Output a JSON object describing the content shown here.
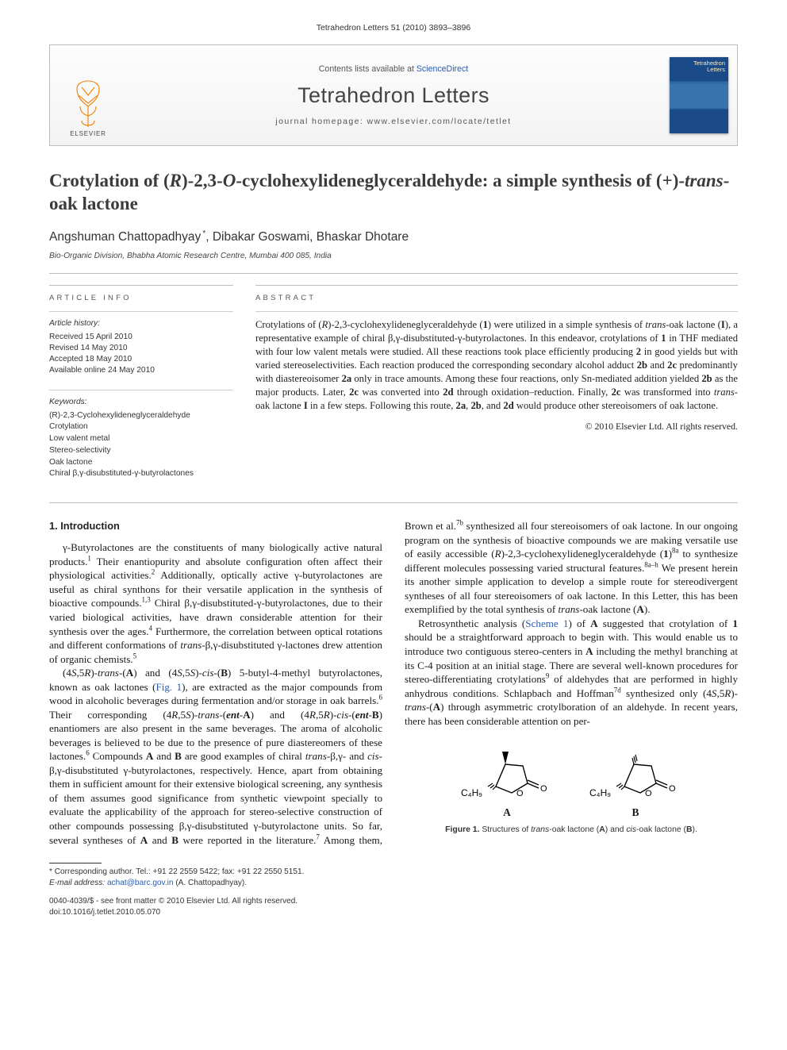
{
  "colors": {
    "link": "#2a5db0",
    "text": "#1a1a1a",
    "muted": "#555555",
    "rule": "#bdbdbd",
    "cover_bg_dark": "#1a4a87",
    "cover_bg_light": "#2d6aa8",
    "cover_text": "#f4e8c8",
    "elsevier_orange": "#ef8200"
  },
  "header": {
    "citation": "Tetrahedron Letters 51 (2010) 3893–3896"
  },
  "banner": {
    "contents_prefix": "Contents lists available at ",
    "contents_link": "ScienceDirect",
    "journal_name": "Tetrahedron Letters",
    "homepage_prefix": "journal homepage: ",
    "homepage_url": "www.elsevier.com/locate/tetlet",
    "publisher": "ELSEVIER",
    "cover_title_1": "Tetrahedron",
    "cover_title_2": "Letters"
  },
  "title": {
    "html": "Crotylation of (<span class='ital'>R</span>)-2,3-<span class='ital'>O</span>-cyclohexylideneglyceraldehyde: a simple synthesis of (+)-<span class='ital'>trans</span>-oak lactone"
  },
  "authors": "Angshuman Chattopadhyay *, Dibakar Goswami, Bhaskar Dhotare",
  "affiliation": "Bio-Organic Division, Bhabha Atomic Research Centre, Mumbai 400 085, India",
  "article_info": {
    "label": "ARTICLE INFO",
    "history_head": "Article history:",
    "history": [
      "Received 15 April 2010",
      "Revised 14 May 2010",
      "Accepted 18 May 2010",
      "Available online 24 May 2010"
    ],
    "keywords_head": "Keywords:",
    "keywords": [
      "(R)-2,3-Cyclohexylideneglyceraldehyde",
      "Crotylation",
      "Low valent metal",
      "Stereo-selectivity",
      "Oak lactone",
      "Chiral β,γ-disubstituted-γ-butyrolactones"
    ]
  },
  "abstract": {
    "label": "ABSTRACT",
    "html": "Crotylations of (<span class='ital'>R</span>)-2,3-cyclohexylideneglyceraldehyde (<b>1</b>) were utilized in a simple synthesis of <span class='ital'>trans</span>-oak lactone (<b>I</b>), a representative example of chiral β,γ-disubstituted-γ-butyrolactones. In this endeavor, crotylations of <b>1</b> in THF mediated with four low valent metals were studied. All these reactions took place efficiently producing <b>2</b> in good yields but with varied stereoselectivities. Each reaction produced the corresponding secondary alcohol adduct <b>2b</b> and <b>2c</b> predominantly with diastereoisomer <b>2a</b> only in trace amounts. Among these four reactions, only Sn-mediated addition yielded <b>2b</b> as the major products. Later, <b>2c</b> was converted into <b>2d</b> through oxidation–reduction. Finally, <b>2c</b> was transformed into <span class='ital'>trans</span>-oak lactone <b>I</b> in a few steps. Following this route, <b>2a</b>, <b>2b</b>, and <b>2d</b> would produce other stereoisomers of oak lactone.",
    "copyright": "© 2010 Elsevier Ltd. All rights reserved."
  },
  "intro": {
    "heading": "1. Introduction",
    "p1": "γ-Butyrolactones are the constituents of many biologically active natural products.<sup>1</sup> Their enantiopurity and absolute configuration often affect their physiological activities.<sup>2</sup> Additionally, optically active γ-butyrolactones are useful as chiral synthons for their versatile application in the synthesis of bioactive compounds.<sup>1,3</sup> Chiral β,γ-disubstituted-γ-butyrolactones, due to their varied biological activities, have drawn considerable attention for their synthesis over the ages.<sup>4</sup> Furthermore, the correlation between optical rotations and different conformations of <span class='ital'>trans</span>-β,γ-disubstituted γ-lactones drew attention of organic chemists.<sup>5</sup>",
    "p2": "(4<span class='ital'>S</span>,5<span class='ital'>R</span>)-<span class='ital'>trans</span>-(<b>A</b>) and (4<span class='ital'>S</span>,5<span class='ital'>S</span>)-<span class='ital'>cis</span>-(<b>B</b>) 5-butyl-4-methyl butyrolactones, known as oak lactones (<a href='#' data-name='figure-link' data-interactable='true'>Fig. 1</a>), are extracted as the major compounds from wood in alcoholic beverages during fermentation and/or storage in oak barrels.<sup>6</sup> Their corresponding (4<span class='ital'>R</span>,5<span class='ital'>S</span>)-<span class='ital'>trans</span>-(<span class='ital'><b>ent</b></span>-<b>A</b>) and (4<span class='ital'>R</span>,5<span class='ital'>R</span>)-<span class='ital'>cis</span>-(<span class='ital'><b>ent</b></span>-<b>B</b>) enantiomers are also present in the same beverages. The aroma of alcoholic beverages is believed to be due to the presence of pure diastereomers of these lactones.<sup>6</sup> Compounds <b>A</b> and <b>B</b> are good examples of chiral <span class='ital'>trans</span>-β,γ- and <span class='ital'>cis</span>-β,γ-disubstituted γ-butyrolactones, respectively. Hence, apart from obtaining them in sufficient amount for their extensive biological screening, any synthesis of them assumes good significance from synthetic viewpoint specially to evaluate the applicability of the approach for stereo-selective construction of other compounds possessing β,γ-disubstituted γ-butyrolactone units. So far, several syntheses of <b>A</b> and <b>B</b> were reported in the literature.<sup>7</sup> Among them, Brown et al.<sup>7b</sup> synthesized all four stereoisomers of oak lactone. In our ongoing program on the synthesis of bioactive compounds we are making versatile use of easily accessible (<span class='ital'>R</span>)-2,3-cyclohexylideneglyceraldehyde (<b>1</b>)<sup>8a</sup> to synthesize different molecules possessing varied structural features.<sup>8a–h</sup> We present herein its another simple application to develop a simple route for stereodivergent syntheses of all four stereoisomers of oak lactone. In this Letter, this has been exemplified by the total synthesis of <span class='ital'>trans</span>-oak lactone (<b>A</b>).",
    "p3": "Retrosynthetic analysis (<a href='#' data-name='scheme-link' data-interactable='true'>Scheme 1</a>) of <b>A</b> suggested that crotylation of <b>1</b> should be a straightforward approach to begin with. This would enable us to introduce two contiguous stereo-centers in <b>A</b> including the methyl branching at its C-4 position at an initial stage. There are several well-known procedures for stereo-differentiating crotylations<sup>9</sup> of aldehydes that are performed in highly anhydrous conditions. Schlapbach and Hoffman<sup>7d</sup> synthesized only (4<span class='ital'>S</span>,5<span class='ital'>R</span>)-<span class='ital'>trans</span>-(<b>A</b>) through asymmetric crotylboration of an aldehyde. In recent years, there has been considerable attention on per-"
  },
  "figure1": {
    "mol_A": {
      "sub_label": "C₄H₉",
      "label": "A"
    },
    "mol_B": {
      "sub_label": "C₄H₉",
      "label": "B"
    },
    "caption_html": "<b>Figure 1.</b> Structures of <span class='ital'>trans</span>-oak lactone (<b>A</b>) and <span class='ital'>cis</span>-oak lactone (<b>B</b>).",
    "stroke": "#000000",
    "stroke_width": 1.3
  },
  "footnote": {
    "corr": "* Corresponding author. Tel.: +91 22 2559 5422; fax: +91 22 2550 5151.",
    "email_label": "E-mail address:",
    "email": "achat@barc.gov.in",
    "email_suffix": " (A. Chattopadhyay)."
  },
  "bottom": {
    "line1": "0040-4039/$ - see front matter © 2010 Elsevier Ltd. All rights reserved.",
    "line2": "doi:10.1016/j.tetlet.2010.05.070"
  }
}
